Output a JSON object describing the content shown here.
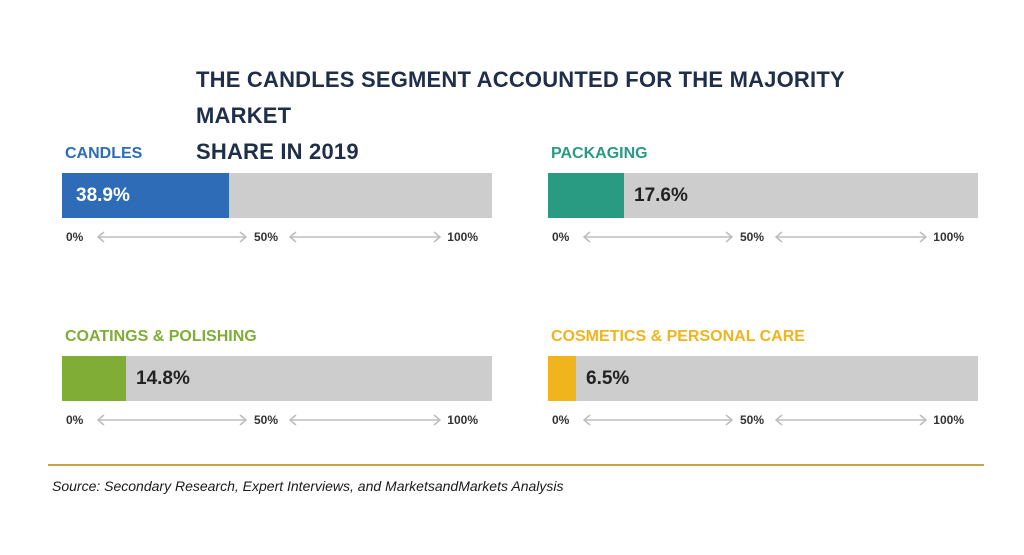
{
  "title_line1": "THE CANDLES SEGMENT ACCOUNTED FOR THE MAJORITY MARKET",
  "title_line2": "SHARE IN 2019",
  "source": "Source: Secondary Research, Expert Interviews, and MarketsandMarkets Analysis",
  "axis_ticks": [
    "0%",
    "50%",
    "100%"
  ],
  "colors": {
    "candles": "#2f6cb8",
    "packaging": "#2a9b83",
    "coatings": "#7fad36",
    "cosmetics": "#f0b41c",
    "track": "#cdcdcd",
    "rule": "#c9a24a"
  },
  "chart_data": {
    "type": "bar",
    "orientation": "horizontal",
    "title": "THE CANDLES SEGMENT ACCOUNTED FOR THE MAJORITY MARKET SHARE IN 2019",
    "xlim": [
      0,
      100
    ],
    "categories": [
      "CANDLES",
      "PACKAGING",
      "COATINGS & POLISHING",
      "COSMETICS & PERSONAL CARE"
    ],
    "values": [
      38.9,
      17.6,
      14.8,
      6.5
    ],
    "labels": [
      "38.9%",
      "17.6%",
      "14.8%",
      "6.5%"
    ],
    "colors": [
      "#2f6cb8",
      "#2a9b83",
      "#7fad36",
      "#f0b41c"
    ]
  }
}
